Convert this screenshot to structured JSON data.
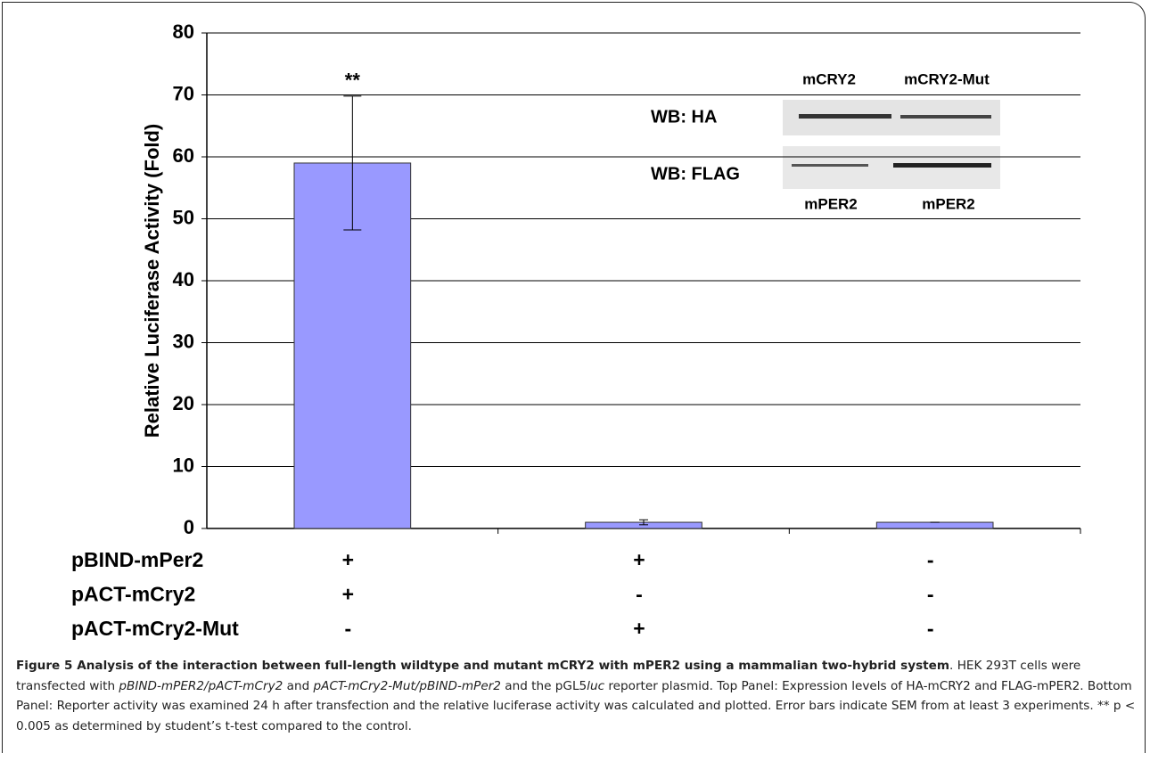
{
  "chart_data": {
    "type": "bar",
    "y_label": "Relative Luciferase Activity (Fold)",
    "values": [
      59,
      1,
      1
    ],
    "errors": [
      10.8,
      0.4,
      0
    ],
    "color": "#9999ff",
    "ylim": [
      0,
      80
    ],
    "yticks": [
      0,
      10,
      20,
      30,
      40,
      50,
      60,
      70,
      80
    ],
    "grid": true,
    "annotations": [
      {
        "text": "**",
        "category": 0
      }
    ],
    "conditions": [
      {
        "label": "pBIND-mPer2",
        "cells": [
          "+",
          "+",
          "-"
        ]
      },
      {
        "label": "pACT-mCry2",
        "cells": [
          "+",
          "-",
          "-"
        ]
      },
      {
        "label": "pACT-mCry2-Mut",
        "cells": [
          "-",
          "+",
          "-"
        ]
      }
    ],
    "inset": {
      "columns": [
        "mCRY2",
        "mCRY2-Mut"
      ],
      "rows": [
        "WB: HA",
        "WB: FLAG"
      ],
      "bottom_labels": [
        "mPER2",
        "mPER2"
      ]
    }
  },
  "caption": [
    "Figure 5 Analysis of the interaction between full-length wildtype and mutant mCRY2 with mPER2 using a mammalian two-hybrid system",
    ". HEK 293T cells were transfected with ",
    "pBIND-mPER2/pACT-mCry2",
    " and ",
    "pACT-mCry2-Mut/pBIND-mPer2",
    " and the pGL5",
    "luc",
    " reporter plasmid. Top Panel: Expression levels of HA-mCRY2 and FLAG-mPER2. Bottom Panel: Reporter activity was examined 24 h after transfection and the relative luciferase activity was calculated and plotted. Error bars indicate SEM from at least 3 experiments. ** p < 0.005 as determined by student’s t-test compared to the control."
  ]
}
